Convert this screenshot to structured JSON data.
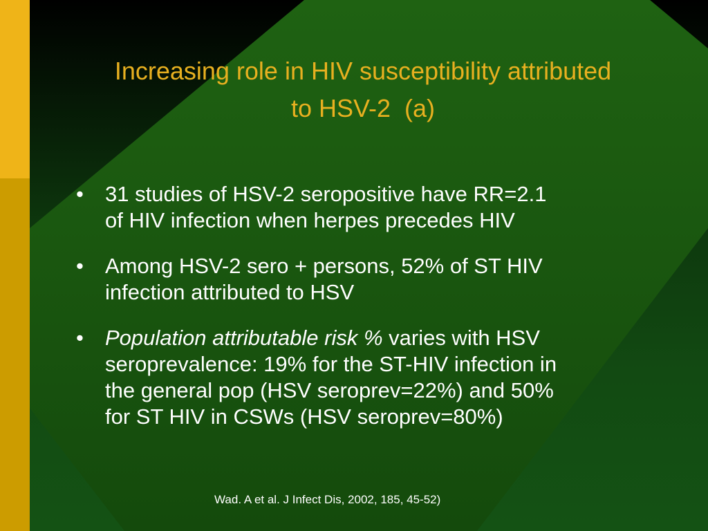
{
  "title": {
    "line1": "Increasing role in HIV susceptibility attributed",
    "line2": "to HSV-2  (a)"
  },
  "bullets": [
    {
      "lines": [
        "31 studies of HSV-2 seropositive have RR=2.1",
        "of HIV infection when herpes precedes HIV"
      ]
    },
    {
      "lines": [
        "Among HSV-2 sero + persons, 52% of ST HIV",
        "infection attributed to HSV"
      ]
    },
    {
      "italic_lead": "Population attributable risk %",
      "first_rest": " varies with HSV",
      "lines": [
        "seroprevalence: 19% for the ST-HIV infection in",
        "the general pop (HSV seroprev=22%) and 50%",
        "for ST HIV in CSWs (HSV seroprev=80%)"
      ]
    }
  ],
  "bullet_glyph": "•",
  "citation": "Wad. A et al. J Infect Dis, 2002, 185, 45-52)",
  "colors": {
    "title": "#e8b020",
    "body_text": "#ffffff",
    "accent_bar_top": "#efb418",
    "accent_bar_bottom": "#cc9c00",
    "diamond": "#1d5c10"
  }
}
